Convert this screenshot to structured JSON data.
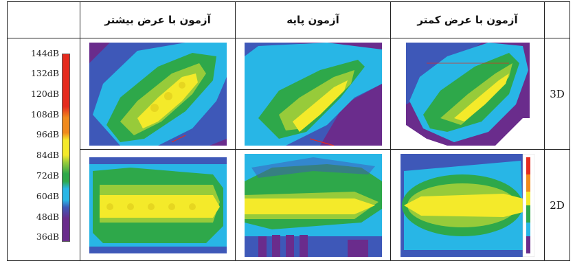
{
  "header": {
    "col1": "آزمون با عرض بیشتر",
    "col2": "آزمون پایه",
    "col3": "آزمون با عرض کمتر"
  },
  "rows": {
    "r3d": "3D",
    "r2d": "2D"
  },
  "scale": {
    "labels": [
      "144dB",
      "132dB",
      "120dB",
      "108dB",
      "96dB",
      "84dB",
      "72dB",
      "60dB",
      "48dB",
      "36dB"
    ],
    "colors": {
      "red": "#e52b1e",
      "orange": "#f08a1c",
      "yellow": "#f4ea2a",
      "light_green": "#97cb3a",
      "green": "#2ea84a",
      "cyan": "#28b6e6",
      "blue": "#3e58b8",
      "purple": "#6a2c8c"
    }
  }
}
